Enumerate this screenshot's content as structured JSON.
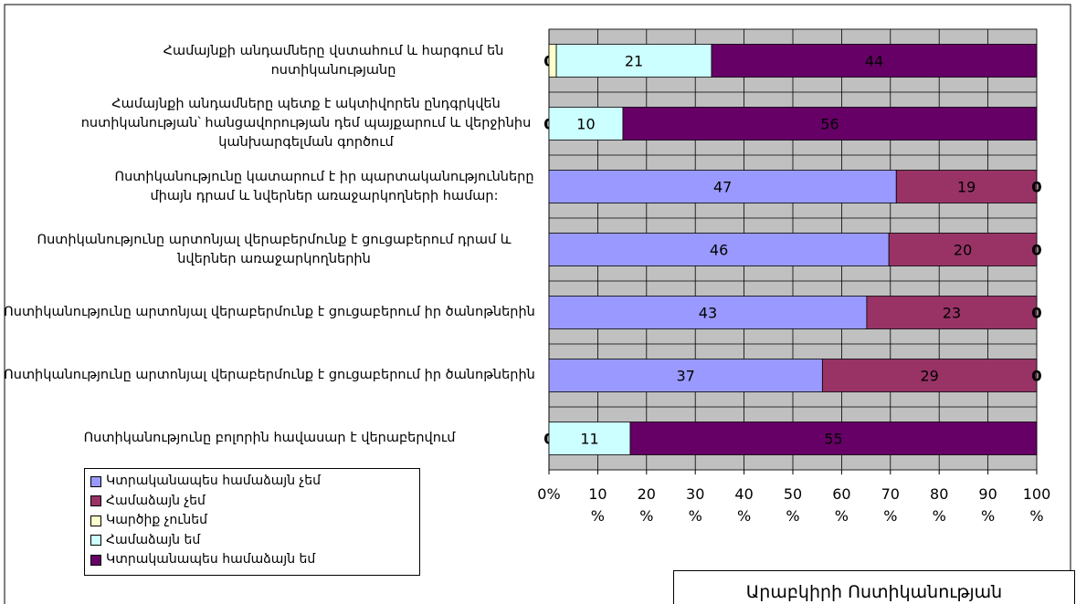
{
  "chart_data": {
    "type": "bar_stacked_100",
    "orientation": "horizontal",
    "categories": [
      "Համայնքի անդամները վստահում և հարգում են ոստիկանությանը",
      "Համայնքի անդամները պետք է ակտիվորեն ընդգրկվեն ոստիկանության՝ հանցավորության դեմ պայքարում և վերջինիս կանխարգելման գործում",
      "Ոստիկանությունը կատարում է իր պարտականությունները միայն դրամ և նվերներ առաջարկողների համար:",
      "Ոստիկանությունը արտոնյալ վերաբերմունք է ցուցաբերում դրամ և նվերներ առաջարկողներին",
      "Ոստիկանությունը արտոնյալ վերաբերմունք է ցուցաբերում իր ծանոթներին",
      "Ոստիկանությունը արտոնյալ վերաբերմունք է ցուցաբերում իր ծանոթներին",
      "Ոստիկանությունը բոլորին հավասար է վերաբերվում"
    ],
    "series": [
      {
        "name": "Կտրականապես համաձայն չեմ",
        "color": "#9999ff",
        "values": [
          0,
          0,
          47,
          46,
          43,
          37,
          0
        ]
      },
      {
        "name": "Համաձայն չեմ",
        "color": "#993366",
        "values": [
          0,
          0,
          19,
          20,
          23,
          29,
          0
        ]
      },
      {
        "name": "Կարծիք չունեմ",
        "color": "#ffffcc",
        "values": [
          1,
          0,
          0,
          0,
          0,
          0,
          0
        ]
      },
      {
        "name": "Համաձայն եմ",
        "color": "#ccffff",
        "values": [
          21,
          10,
          0,
          0,
          0,
          0,
          11
        ]
      },
      {
        "name": "Կտրականապես համաձայն եմ",
        "color": "#660066",
        "values": [
          44,
          56,
          0,
          0,
          0,
          0,
          55
        ]
      }
    ],
    "xlim": [
      0,
      100
    ],
    "xticks": [
      {
        "value": 0,
        "label": "0%"
      },
      {
        "value": 10,
        "label": "10%"
      },
      {
        "value": 20,
        "label": "20%"
      },
      {
        "value": 30,
        "label": "30%"
      },
      {
        "value": 40,
        "label": "40%"
      },
      {
        "value": 50,
        "label": "50%"
      },
      {
        "value": 60,
        "label": "60%"
      },
      {
        "value": 70,
        "label": "70%"
      },
      {
        "value": 80,
        "label": "80%"
      },
      {
        "value": 90,
        "label": "90%"
      },
      {
        "value": 100,
        "label": "100%"
      }
    ],
    "grid": true,
    "legend": "bottom-left",
    "annotation": "Արաբկիրի Ոստիկանության"
  }
}
